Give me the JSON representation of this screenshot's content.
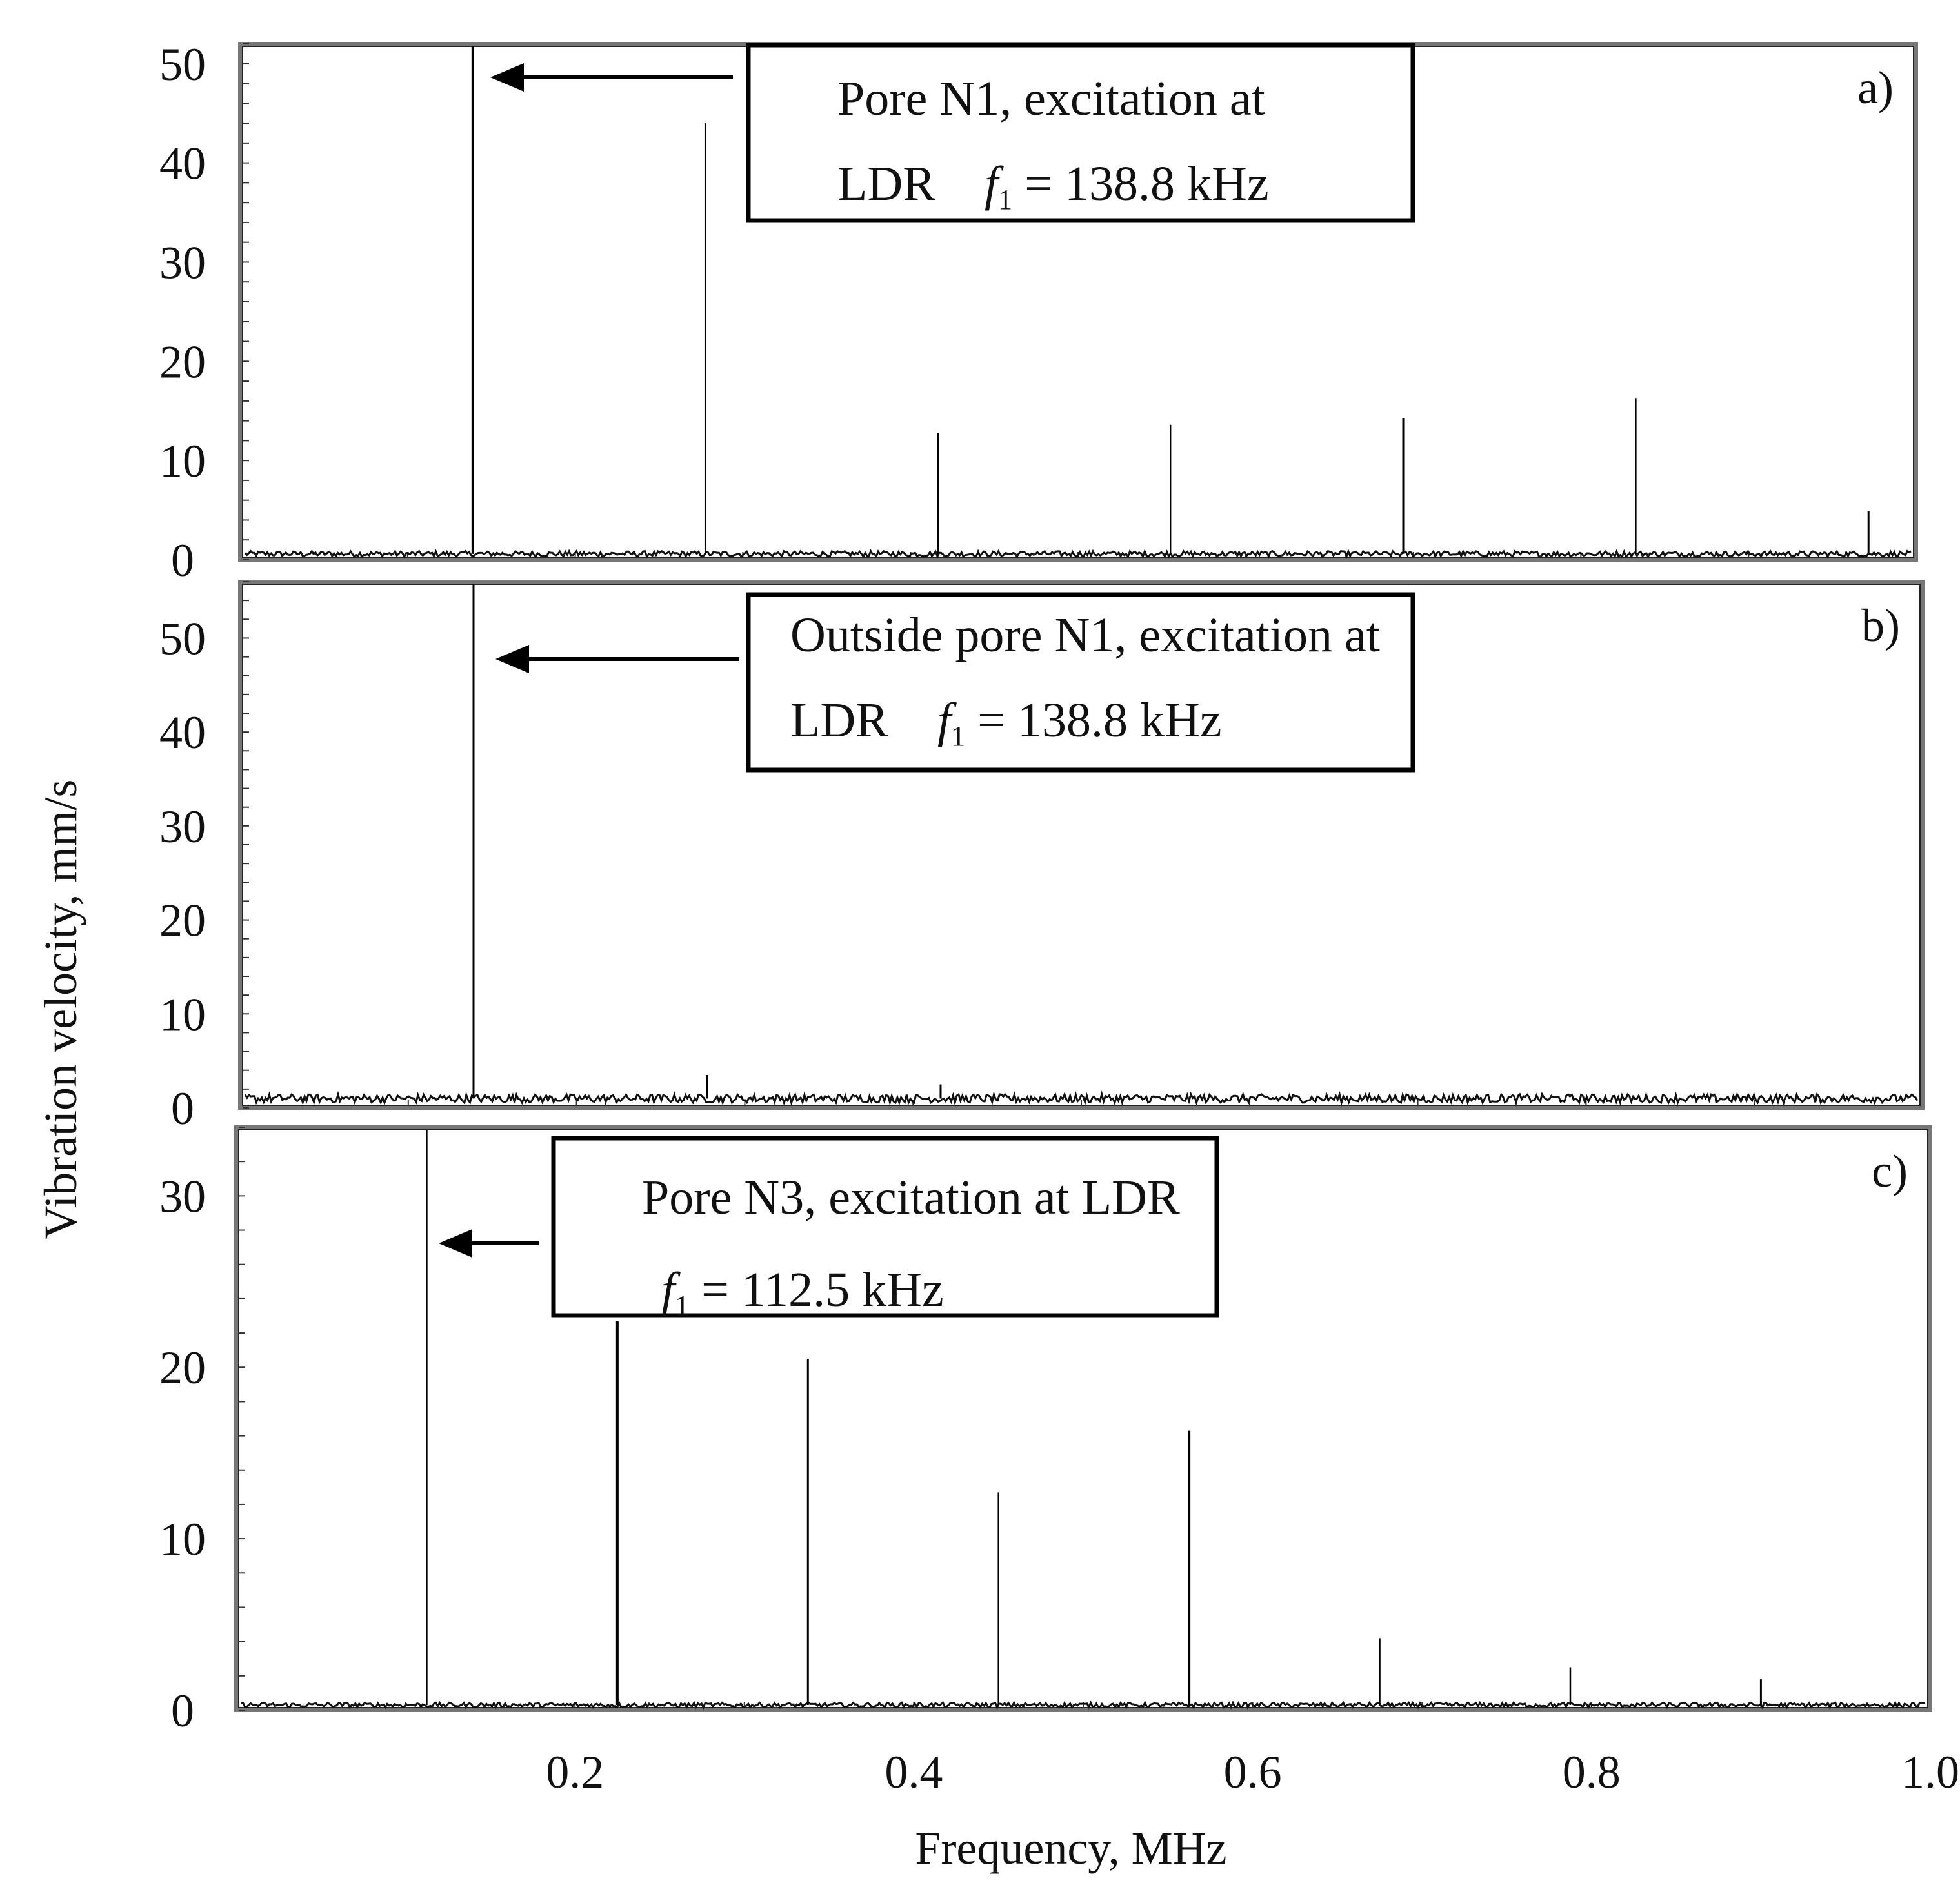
{
  "chart_data": [
    {
      "type": "line",
      "panel_label": "a)",
      "xlim": [
        0,
        1.0
      ],
      "ylim": [
        0,
        52
      ],
      "y_ticks": [
        "0",
        "10",
        "20",
        "30",
        "40",
        "50"
      ],
      "x_ticks": [],
      "baseline": 0.6,
      "peaks": [
        {
          "x": 0.1388,
          "y": 52
        },
        {
          "x": 0.2776,
          "y": 44
        },
        {
          "x": 0.4164,
          "y": 12.8
        },
        {
          "x": 0.5552,
          "y": 13.6
        },
        {
          "x": 0.694,
          "y": 14.3
        },
        {
          "x": 0.8328,
          "y": 16.3
        },
        {
          "x": 0.9716,
          "y": 4.9
        }
      ],
      "annotation": {
        "line1": "Pore  N1,  excitation  at",
        "line2_prefix": "LDR",
        "line2_var": "f",
        "line2_sub": "1",
        "line2_value": "= 138.8 kHz"
      }
    },
    {
      "type": "line",
      "panel_label": "b)",
      "xlim": [
        0,
        1.0
      ],
      "ylim": [
        0,
        56
      ],
      "y_ticks": [
        "0",
        "10",
        "20",
        "30",
        "40",
        "50"
      ],
      "x_ticks": [],
      "baseline": 1.0,
      "peaks": [
        {
          "x": 0.1388,
          "y": 56
        },
        {
          "x": 0.2776,
          "y": 3.5
        },
        {
          "x": 0.4164,
          "y": 2.5
        }
      ],
      "annotation": {
        "line1": "Outside pore N1, excitation at",
        "line2_prefix": "LDR",
        "line2_var": "f",
        "line2_sub": "1",
        "line2_value": "= 138.8 kHz"
      }
    },
    {
      "type": "line",
      "panel_label": "c)",
      "xlim": [
        0,
        1.0
      ],
      "ylim": [
        0,
        34
      ],
      "y_ticks": [
        "0",
        "10",
        "20",
        "30"
      ],
      "x_ticks": [
        "0.2",
        "0.4",
        "0.6",
        "0.8",
        "1.0"
      ],
      "baseline": 0.3,
      "peaks": [
        {
          "x": 0.1125,
          "y": 34
        },
        {
          "x": 0.225,
          "y": 22.7
        },
        {
          "x": 0.3375,
          "y": 20.5
        },
        {
          "x": 0.45,
          "y": 12.7
        },
        {
          "x": 0.5625,
          "y": 16.3
        },
        {
          "x": 0.675,
          "y": 4.2
        },
        {
          "x": 0.7875,
          "y": 2.5
        },
        {
          "x": 0.9,
          "y": 1.8
        }
      ],
      "annotation": {
        "line1": "Pore  N3,  excitation  at  LDR",
        "line2_prefix": "",
        "line2_var": "f",
        "line2_sub": "1",
        "line2_value": "= 112.5 kHz"
      }
    }
  ],
  "axes": {
    "ylabel": "Vibration velocity, mm/s",
    "xlabel": "Frequency, MHz"
  }
}
